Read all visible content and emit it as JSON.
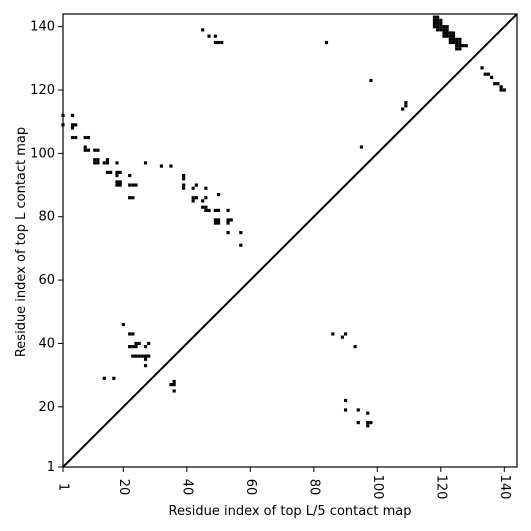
{
  "chart_data": {
    "type": "heatmap",
    "title": "",
    "xlabel": "Residue index of top L/5 contact map",
    "ylabel": "Residue index of top L contact map",
    "xlim": [
      1,
      144
    ],
    "ylim": [
      1,
      144
    ],
    "x_ticks": [
      1,
      20,
      40,
      60,
      80,
      100,
      120,
      140
    ],
    "y_ticks": [
      1,
      20,
      40,
      60,
      80,
      100,
      120,
      140
    ],
    "grid": false,
    "diagonal": true,
    "colors": {
      "contact": "#000000",
      "background": "#ffffff",
      "axis": "#000000"
    },
    "upper_triangle_contacts": [
      [
        1,
        112
      ],
      [
        1,
        109
      ],
      [
        4,
        112
      ],
      [
        4,
        109
      ],
      [
        4,
        108
      ],
      [
        5,
        109
      ],
      [
        5,
        105
      ],
      [
        4,
        105
      ],
      [
        8,
        105
      ],
      [
        9,
        105
      ],
      [
        8,
        102
      ],
      [
        8,
        101
      ],
      [
        9,
        101
      ],
      [
        11,
        101
      ],
      [
        12,
        101
      ],
      [
        11,
        98
      ],
      [
        12,
        98
      ],
      [
        11,
        97
      ],
      [
        12,
        97
      ],
      [
        14,
        97
      ],
      [
        15,
        97
      ],
      [
        15,
        98
      ],
      [
        15,
        94
      ],
      [
        16,
        94
      ],
      [
        18,
        97
      ],
      [
        18,
        94
      ],
      [
        19,
        94
      ],
      [
        18,
        93
      ],
      [
        18,
        91
      ],
      [
        19,
        91
      ],
      [
        18,
        90
      ],
      [
        19,
        90
      ],
      [
        22,
        93
      ],
      [
        22,
        90
      ],
      [
        23,
        90
      ],
      [
        24,
        90
      ],
      [
        22,
        86
      ],
      [
        23,
        86
      ],
      [
        27,
        97
      ],
      [
        32,
        96
      ],
      [
        35,
        96
      ],
      [
        39,
        93
      ],
      [
        39,
        92
      ],
      [
        39,
        90
      ],
      [
        39,
        89
      ],
      [
        43,
        90
      ],
      [
        42,
        89
      ],
      [
        42,
        86
      ],
      [
        43,
        86
      ],
      [
        42,
        85
      ],
      [
        45,
        85
      ],
      [
        46,
        86
      ],
      [
        45,
        83
      ],
      [
        46,
        83
      ],
      [
        47,
        82
      ],
      [
        46,
        82
      ],
      [
        46,
        89
      ],
      [
        50,
        87
      ],
      [
        49,
        82
      ],
      [
        50,
        82
      ],
      [
        49,
        79
      ],
      [
        50,
        79
      ],
      [
        49,
        78
      ],
      [
        50,
        78
      ],
      [
        53,
        82
      ],
      [
        53,
        79
      ],
      [
        54,
        79
      ],
      [
        53,
        78
      ],
      [
        53,
        75
      ],
      [
        57,
        75
      ],
      [
        57,
        71
      ],
      [
        45,
        139
      ],
      [
        47,
        137
      ],
      [
        49,
        137
      ],
      [
        49,
        135
      ],
      [
        50,
        135
      ],
      [
        51,
        135
      ],
      [
        84,
        135
      ],
      [
        95,
        102
      ],
      [
        98,
        123
      ],
      [
        108,
        114
      ],
      [
        109,
        115
      ],
      [
        109,
        116
      ],
      [
        133,
        127
      ],
      [
        134,
        125
      ],
      [
        135,
        125
      ],
      [
        136,
        124
      ],
      [
        137,
        122
      ],
      [
        138,
        122
      ],
      [
        139,
        121
      ],
      [
        139,
        120
      ],
      [
        140,
        120
      ]
    ],
    "upper_triangle_cluster": [
      [
        118,
        143
      ],
      [
        119,
        143
      ],
      [
        118,
        142
      ],
      [
        119,
        142
      ],
      [
        120,
        142
      ],
      [
        118,
        141
      ],
      [
        119,
        141
      ],
      [
        120,
        141
      ],
      [
        118,
        140
      ],
      [
        119,
        140
      ],
      [
        120,
        140
      ],
      [
        121,
        140
      ],
      [
        122,
        140
      ],
      [
        119,
        139
      ],
      [
        120,
        139
      ],
      [
        121,
        139
      ],
      [
        122,
        139
      ],
      [
        121,
        138
      ],
      [
        122,
        138
      ],
      [
        123,
        138
      ],
      [
        124,
        138
      ],
      [
        121,
        137
      ],
      [
        122,
        137
      ],
      [
        123,
        137
      ],
      [
        124,
        137
      ],
      [
        123,
        136
      ],
      [
        124,
        136
      ],
      [
        125,
        136
      ],
      [
        126,
        136
      ],
      [
        123,
        135
      ],
      [
        124,
        135
      ],
      [
        125,
        135
      ],
      [
        126,
        135
      ],
      [
        125,
        134
      ],
      [
        126,
        134
      ],
      [
        127,
        134
      ],
      [
        128,
        134
      ],
      [
        125,
        133
      ],
      [
        126,
        133
      ]
    ],
    "lower_triangle_contacts": [
      [
        20,
        46
      ],
      [
        22,
        43
      ],
      [
        23,
        43
      ],
      [
        22,
        39
      ],
      [
        23,
        39
      ],
      [
        24,
        39
      ],
      [
        24,
        40
      ],
      [
        25,
        40
      ],
      [
        23,
        36
      ],
      [
        24,
        36
      ],
      [
        25,
        36
      ],
      [
        26,
        36
      ],
      [
        27,
        39
      ],
      [
        28,
        40
      ],
      [
        27,
        36
      ],
      [
        28,
        36
      ],
      [
        27,
        35
      ],
      [
        27,
        33
      ],
      [
        14,
        29
      ],
      [
        17,
        29
      ],
      [
        35,
        27
      ],
      [
        36,
        28
      ],
      [
        36,
        27
      ],
      [
        36,
        25
      ],
      [
        86,
        43
      ],
      [
        89,
        42
      ],
      [
        90,
        43
      ],
      [
        93,
        39
      ],
      [
        90,
        22
      ],
      [
        90,
        19
      ],
      [
        94,
        19
      ],
      [
        97,
        18
      ],
      [
        94,
        15
      ],
      [
        97,
        15
      ],
      [
        98,
        15
      ],
      [
        97,
        14
      ]
    ]
  }
}
